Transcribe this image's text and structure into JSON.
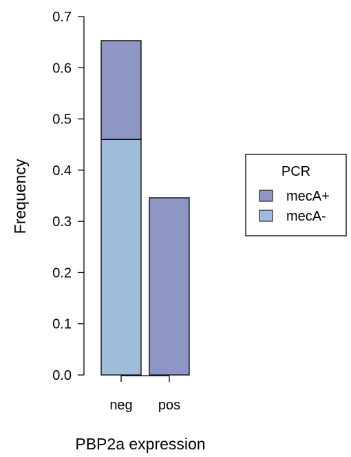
{
  "chart_data": {
    "type": "bar",
    "stacked": true,
    "categories": [
      "neg",
      "pos"
    ],
    "series": [
      {
        "name": "mecA-",
        "values": [
          0.46,
          0.0
        ],
        "color": "#9FBDD9"
      },
      {
        "name": "mecA+",
        "values": [
          0.193,
          0.346
        ],
        "color": "#8D96C4"
      }
    ],
    "xlabel": "PBP2a expression",
    "ylabel": "Frequency",
    "ylim": [
      0,
      0.7
    ],
    "yticks": [
      0.0,
      0.1,
      0.2,
      0.3,
      0.4,
      0.5,
      0.6,
      0.7
    ],
    "ytick_labels": [
      "0.0",
      "0.1",
      "0.2",
      "0.3",
      "0.4",
      "0.5",
      "0.6",
      "0.7"
    ],
    "grid": false,
    "legend": {
      "title": "PCR",
      "placement": "right",
      "entries": [
        {
          "label": "mecA+",
          "color": "#8D96C4"
        },
        {
          "label": "mecA-",
          "color": "#9FBDD9"
        }
      ]
    }
  }
}
